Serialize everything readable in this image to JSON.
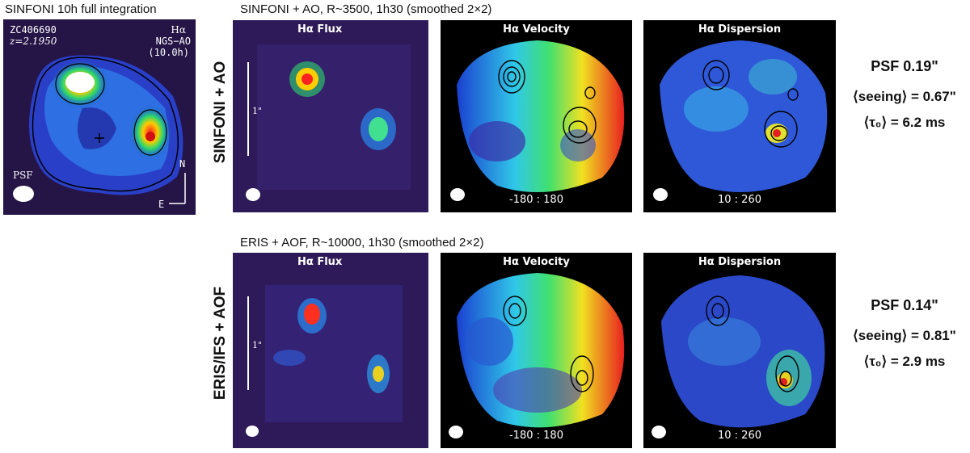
{
  "left": {
    "caption": "SINFONI 10h full integration",
    "object_id": "ZC406690",
    "redshift": "z=2.1950",
    "line": "Hα",
    "mode": "NGS−AO",
    "time": "(10.0h)",
    "psf_label": "PSF",
    "north": "N",
    "east": "E"
  },
  "rows": [
    {
      "caption": "SINFONI + AO, R~3500, 1h30 (smoothed 2×2)",
      "side_label": "SINFONI + AO",
      "scale_label": "1\"",
      "flux_title": "Hα Flux",
      "vel_title": "Hα Velocity",
      "vel_range": "-180 : 180",
      "disp_title": "Hα Dispersion",
      "disp_range": "10 : 260",
      "psf": "PSF 0.19\"",
      "seeing": "⟨seeing⟩ = 0.67\"",
      "tau": "⟨τ₀⟩ = 6.2 ms"
    },
    {
      "caption": "ERIS + AOF, R~10000, 1h30 (smoothed 2×2)",
      "side_label": "ERIS/IFS + AOF",
      "scale_label": "1\"",
      "flux_title": "Hα Flux",
      "vel_title": "Hα Velocity",
      "vel_range": "-180 : 180",
      "disp_title": "Hα Dispersion",
      "disp_range": "10 : 260",
      "psf": "PSF 0.14\"",
      "seeing": "⟨seeing⟩ = 0.81\"",
      "tau": "⟨τ₀⟩ = 2.9 ms"
    }
  ]
}
